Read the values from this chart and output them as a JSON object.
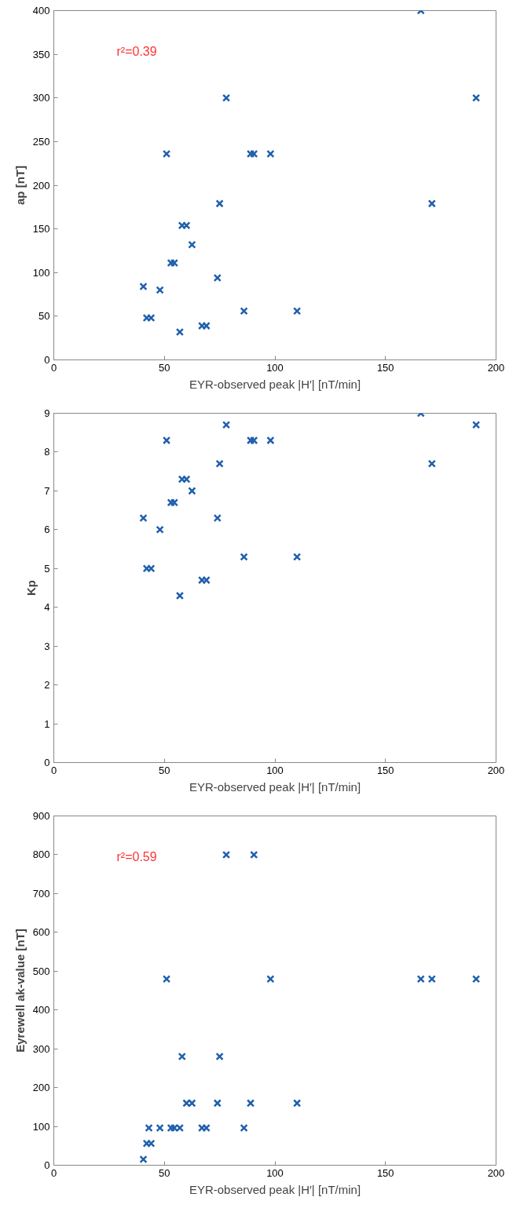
{
  "chart_data": [
    {
      "type": "scatter",
      "xlabel": "EYR-observed peak |H′| [nT/min]",
      "ylabel": "ap [nT]",
      "marker": "cross",
      "grid": false,
      "xlim": [
        0,
        200
      ],
      "xticks": [
        0,
        50,
        100,
        150,
        200
      ],
      "ylim": [
        0,
        400
      ],
      "yticks": [
        0,
        50,
        100,
        150,
        200,
        250,
        300,
        350,
        400
      ],
      "x": [
        40.5,
        42,
        43,
        44,
        48,
        51,
        53,
        54.5,
        57,
        58,
        60,
        62.5,
        67,
        69,
        74,
        75,
        78,
        86,
        89,
        90.5,
        98,
        110,
        166,
        171,
        191
      ],
      "series": [
        {
          "color": "#1f5fad",
          "values": [
            84,
            48,
            null,
            48,
            80,
            236,
            111,
            111,
            32,
            154,
            154,
            132,
            39,
            39,
            94,
            179,
            300,
            56,
            236,
            236,
            236,
            56,
            400,
            179,
            300
          ]
        }
      ],
      "annotations": [
        "r²=0.39"
      ]
    },
    {
      "type": "scatter",
      "xlabel": "EYR-observed peak |H′| [nT/min]",
      "ylabel": "Kp",
      "marker": "cross",
      "grid": false,
      "xlim": [
        0,
        200
      ],
      "xticks": [
        0,
        50,
        100,
        150,
        200
      ],
      "ylim": [
        0,
        9
      ],
      "yticks": [
        0,
        1,
        2,
        3,
        4,
        5,
        6,
        7,
        8,
        9
      ],
      "x": [
        40.5,
        42,
        43,
        44,
        48,
        51,
        53,
        54.5,
        57,
        58,
        60,
        62.5,
        67,
        69,
        74,
        75,
        78,
        86,
        89,
        90.5,
        98,
        110,
        166,
        171,
        191
      ],
      "series": [
        {
          "color": "#1f5fad",
          "values": [
            6.3,
            5.0,
            null,
            5.0,
            6.0,
            8.3,
            6.7,
            6.7,
            4.3,
            7.3,
            7.3,
            7.0,
            4.7,
            4.7,
            6.3,
            7.7,
            8.7,
            5.3,
            8.3,
            8.3,
            8.3,
            5.3,
            9.0,
            7.7,
            8.7
          ]
        }
      ]
    },
    {
      "type": "scatter",
      "xlabel": "EYR-observed peak |H′| [nT/min]",
      "ylabel": "Eyrewell ak-value [nT]",
      "marker": "cross",
      "grid": false,
      "xlim": [
        0,
        200
      ],
      "xticks": [
        0,
        50,
        100,
        150,
        200
      ],
      "ylim": [
        0,
        900
      ],
      "yticks": [
        0,
        100,
        200,
        300,
        400,
        500,
        600,
        700,
        800,
        900
      ],
      "x": [
        40.5,
        42,
        43,
        44,
        48,
        51,
        53,
        54.5,
        57,
        58,
        60,
        62.5,
        67,
        69,
        74,
        75,
        78,
        86,
        89,
        90.5,
        98,
        110,
        166,
        171,
        191
      ],
      "series": [
        {
          "color": "#1f5fad",
          "values": [
            15,
            56,
            96,
            56,
            96,
            480,
            96,
            96,
            96,
            280,
            160,
            160,
            96,
            96,
            160,
            280,
            800,
            96,
            160,
            800,
            480,
            160,
            480,
            480,
            480
          ]
        }
      ],
      "annotations": [
        "r²=0.59"
      ]
    }
  ]
}
